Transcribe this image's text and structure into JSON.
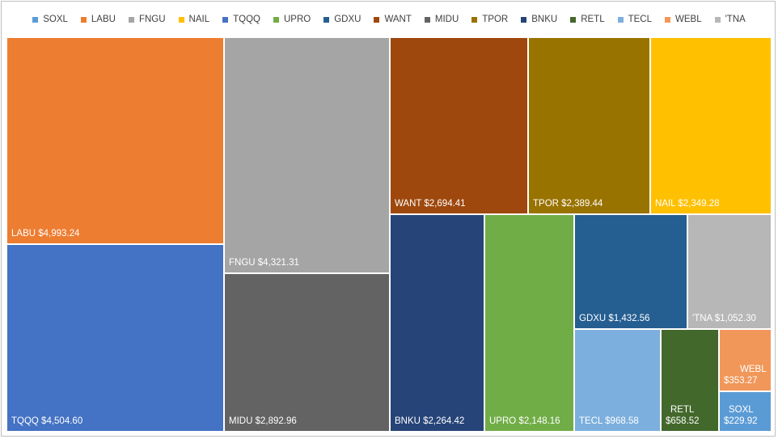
{
  "chart_data": {
    "type": "treemap",
    "title": "",
    "legend_position": "top",
    "categories": [
      "SOXL",
      "LABU",
      "FNGU",
      "NAIL",
      "TQQQ",
      "UPRO",
      "GDXU",
      "WANT",
      "MIDU",
      "TPOR",
      "BNKU",
      "RETL",
      "TECL",
      "WEBL",
      "'TNA"
    ],
    "legend_colors": [
      "#5b9bd5",
      "#ed7d31",
      "#a5a5a5",
      "#ffc000",
      "#4472c4",
      "#70ad47",
      "#255e91",
      "#9e480e",
      "#636363",
      "#997300",
      "#264478",
      "#43682b",
      "#7cafdd",
      "#f1975a",
      "#b7b7b7"
    ],
    "items": [
      {
        "name": "LABU",
        "value": 4993.24,
        "label": "LABU $4,993.24",
        "color": "#ed7d31"
      },
      {
        "name": "TQQQ",
        "value": 4504.6,
        "label": "TQQQ $4,504.60",
        "color": "#4472c4"
      },
      {
        "name": "FNGU",
        "value": 4321.31,
        "label": "FNGU $4,321.31",
        "color": "#a5a5a5"
      },
      {
        "name": "MIDU",
        "value": 2892.96,
        "label": "MIDU $2,892.96",
        "color": "#636363"
      },
      {
        "name": "WANT",
        "value": 2694.41,
        "label": "WANT $2,694.41",
        "color": "#9e480e"
      },
      {
        "name": "TPOR",
        "value": 2389.44,
        "label": "TPOR $2,389.44",
        "color": "#997300"
      },
      {
        "name": "NAIL",
        "value": 2349.28,
        "label": "NAIL $2,349.28",
        "color": "#ffc000"
      },
      {
        "name": "BNKU",
        "value": 2264.42,
        "label": "BNKU $2,264.42",
        "color": "#264478"
      },
      {
        "name": "UPRO",
        "value": 2148.16,
        "label": "UPRO $2,148.16",
        "color": "#70ad47"
      },
      {
        "name": "GDXU",
        "value": 1432.56,
        "label": "GDXU $1,432.56",
        "color": "#255e91"
      },
      {
        "name": "'TNA",
        "value": 1052.3,
        "label": "'TNA $1,052.30",
        "color": "#b7b7b7"
      },
      {
        "name": "TECL",
        "value": 968.58,
        "label": "TECL $968.58",
        "color": "#7cafdd"
      },
      {
        "name": "RETL",
        "value": 658.52,
        "label": "RETL $658.52",
        "color": "#43682b"
      },
      {
        "name": "WEBL",
        "value": 353.27,
        "label": "WEBL $353.27",
        "color": "#f1975a"
      },
      {
        "name": "SOXL",
        "value": 229.92,
        "label": "SOXL $229.92",
        "color": "#5b9bd5"
      }
    ]
  }
}
